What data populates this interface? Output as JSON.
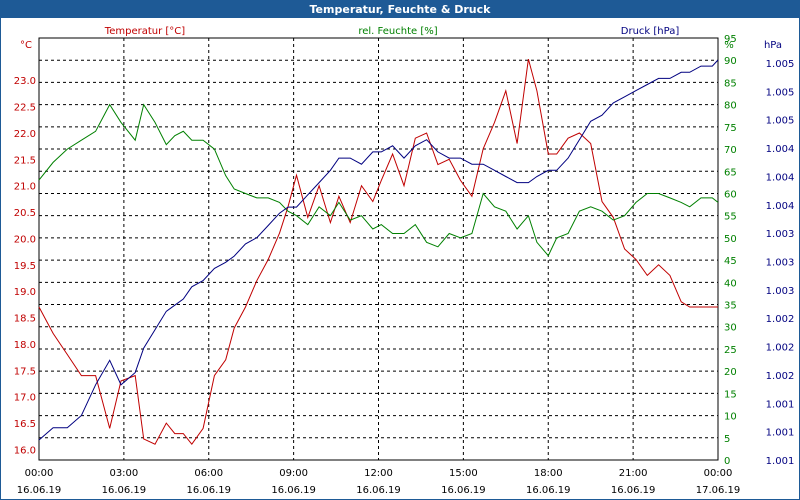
{
  "window": {
    "title": "Temperatur, Feuchte & Druck"
  },
  "chart_data": {
    "type": "line",
    "grid": true,
    "x": {
      "ticks": [
        {
          "time": "00:00",
          "date": "16.06.19"
        },
        {
          "time": "03:00",
          "date": "16.06.19"
        },
        {
          "time": "06:00",
          "date": "16.06.19"
        },
        {
          "time": "09:00",
          "date": "16.06.19"
        },
        {
          "time": "12:00",
          "date": "16.06.19"
        },
        {
          "time": "15:00",
          "date": "16.06.19"
        },
        {
          "time": "18:00",
          "date": "16.06.19"
        },
        {
          "time": "21:00",
          "date": "16.06.19"
        },
        {
          "time": "00:00",
          "date": "17.06.19"
        }
      ],
      "range_hours": [
        0,
        24
      ]
    },
    "y_temperature": {
      "unit": "°C",
      "header": "Temperatur [°C]",
      "color": "#c00000",
      "ylim": [
        15.8,
        23.8
      ],
      "ticks": [
        "16.0",
        "16.5",
        "17.0",
        "17.5",
        "18.0",
        "18.5",
        "19.0",
        "19.5",
        "20.0",
        "20.5",
        "21.0",
        "21.5",
        "22.0",
        "22.5",
        "23.0"
      ]
    },
    "y_humidity": {
      "unit": "%",
      "header": "rel. Feuchte [%]",
      "color": "#008000",
      "ylim": [
        0,
        95
      ],
      "ticks": [
        "0",
        "5",
        "10",
        "15",
        "20",
        "25",
        "30",
        "35",
        "40",
        "45",
        "50",
        "55",
        "60",
        "65",
        "70",
        "75",
        "80",
        "85",
        "90",
        "95"
      ]
    },
    "y_pressure": {
      "unit": "hPa",
      "header": "Druck [hPa]",
      "color": "#000080",
      "ticks": [
        "1.001",
        "1.001",
        "1.001",
        "1.002",
        "1.002",
        "1.002",
        "1.003",
        "1.003",
        "1.003",
        "1.004",
        "1.004",
        "1.004",
        "1.005",
        "1.005",
        "1.005"
      ]
    },
    "series": [
      {
        "key": "temperature",
        "color": "#c00000",
        "x": [
          0,
          0.5,
          1,
          1.5,
          2,
          2.5,
          2.9,
          3.4,
          3.7,
          4.1,
          4.5,
          4.8,
          5.1,
          5.4,
          5.8,
          6.2,
          6.6,
          6.9,
          7.3,
          7.7,
          8.1,
          8.5,
          8.8,
          9.1,
          9.5,
          9.9,
          10.3,
          10.6,
          11,
          11.4,
          11.8,
          12.1,
          12.5,
          12.9,
          13.3,
          13.7,
          14.1,
          14.5,
          14.9,
          15.3,
          15.7,
          16.1,
          16.5,
          16.9,
          17.3,
          17.6,
          18,
          18.3,
          18.7,
          19.1,
          19.5,
          19.9,
          20.3,
          20.7,
          21.1,
          21.5,
          21.9,
          22.3,
          22.7,
          23,
          23.4,
          23.8,
          24
        ],
        "values": [
          18.7,
          18.2,
          17.8,
          17.4,
          17.4,
          16.4,
          17.3,
          17.4,
          16.2,
          16.1,
          16.5,
          16.3,
          16.3,
          16.1,
          16.4,
          17.4,
          17.7,
          18.3,
          18.7,
          19.2,
          19.6,
          20.1,
          20.6,
          21.2,
          20.4,
          21.0,
          20.3,
          20.8,
          20.3,
          21.0,
          20.7,
          21.1,
          21.6,
          21.0,
          21.9,
          22.0,
          21.4,
          21.5,
          21.1,
          20.8,
          21.7,
          22.2,
          22.8,
          21.8,
          23.4,
          22.8,
          21.6,
          21.6,
          21.9,
          22.0,
          21.8,
          20.7,
          20.4,
          19.8,
          19.6,
          19.3,
          19.5,
          19.3,
          18.8,
          18.7,
          18.7,
          18.7,
          18.7
        ]
      },
      {
        "key": "humidity",
        "color": "#008000",
        "x": [
          0,
          0.5,
          1,
          1.5,
          2,
          2.5,
          2.9,
          3.4,
          3.7,
          4.1,
          4.5,
          4.8,
          5.1,
          5.4,
          5.8,
          6.2,
          6.6,
          6.9,
          7.3,
          7.7,
          8.1,
          8.5,
          8.8,
          9.1,
          9.5,
          9.9,
          10.3,
          10.6,
          11,
          11.4,
          11.8,
          12.1,
          12.5,
          12.9,
          13.3,
          13.7,
          14.1,
          14.5,
          14.9,
          15.3,
          15.7,
          16.1,
          16.5,
          16.9,
          17.3,
          17.6,
          18,
          18.3,
          18.7,
          19.1,
          19.5,
          19.9,
          20.3,
          20.7,
          21.1,
          21.5,
          21.9,
          22.3,
          22.7,
          23,
          23.4,
          23.8,
          24
        ],
        "values": [
          63,
          67,
          70,
          72,
          74,
          80,
          76,
          72,
          80,
          76,
          71,
          73,
          74,
          72,
          72,
          70,
          64,
          61,
          60,
          59,
          59,
          58,
          56,
          55,
          53,
          57,
          55,
          58,
          54,
          55,
          52,
          53,
          51,
          51,
          53,
          49,
          48,
          51,
          50,
          51,
          60,
          57,
          56,
          52,
          55,
          49,
          46,
          50,
          51,
          56,
          57,
          56,
          54,
          55,
          58,
          60,
          60,
          59,
          58,
          57,
          59,
          59,
          58
        ]
      },
      {
        "key": "pressure",
        "color": "#000080",
        "x": [
          0,
          0.5,
          1,
          1.5,
          2,
          2.5,
          2.9,
          3.4,
          3.7,
          4.1,
          4.5,
          4.8,
          5.1,
          5.4,
          5.8,
          6.2,
          6.6,
          6.9,
          7.3,
          7.7,
          8.1,
          8.5,
          8.8,
          9.1,
          9.5,
          9.9,
          10.3,
          10.6,
          11,
          11.4,
          11.8,
          12.1,
          12.5,
          12.9,
          13.3,
          13.7,
          14.1,
          14.5,
          14.9,
          15.3,
          15.7,
          16.1,
          16.5,
          16.9,
          17.3,
          17.6,
          18,
          18.3,
          18.7,
          19.1,
          19.5,
          19.9,
          20.3,
          20.7,
          21.1,
          21.5,
          21.9,
          22.3,
          22.7,
          23,
          23.4,
          23.8,
          24
        ],
        "values": [
          1.0007,
          1.0009,
          1.0009,
          1.0011,
          1.0016,
          1.002,
          1.0016,
          1.0018,
          1.0022,
          1.0025,
          1.0028,
          1.0029,
          1.003,
          1.0032,
          1.0033,
          1.0035,
          1.0036,
          1.0037,
          1.0039,
          1.004,
          1.0042,
          1.0044,
          1.0045,
          1.0045,
          1.0047,
          1.0049,
          1.0051,
          1.0053,
          1.0053,
          1.0052,
          1.0054,
          1.0054,
          1.0055,
          1.0053,
          1.0055,
          1.0056,
          1.0054,
          1.0053,
          1.0053,
          1.0052,
          1.0052,
          1.0051,
          1.005,
          1.0049,
          1.0049,
          1.005,
          1.0051,
          1.0051,
          1.0053,
          1.0056,
          1.0059,
          1.006,
          1.0062,
          1.0063,
          1.0064,
          1.0065,
          1.0066,
          1.0066,
          1.0067,
          1.0067,
          1.0068,
          1.0068,
          1.0069
        ]
      }
    ]
  }
}
